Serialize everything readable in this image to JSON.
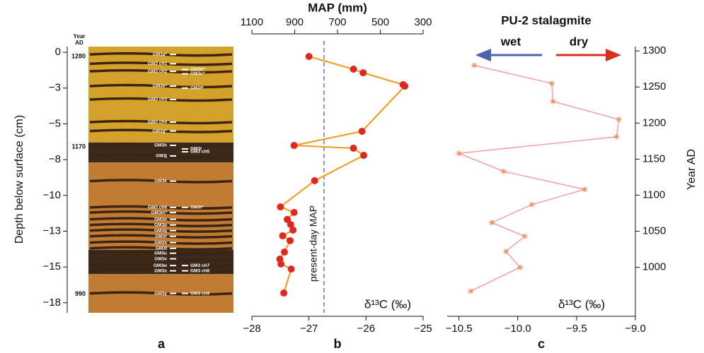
{
  "chart_data": [
    {
      "type": "column",
      "panel": "a",
      "ylabel": "Depth below surface (cm)",
      "ylim": [
        0.4,
        -18.2
      ],
      "yticks": [
        0,
        {
          "value": -2.5,
          "label": "−3"
        },
        {
          "value": -5,
          "label": "−5"
        },
        {
          "value": -7.5,
          "label": "−8"
        },
        {
          "value": -10,
          "label": "−10"
        },
        {
          "value": -12.5,
          "label": "−13"
        },
        {
          "value": -15,
          "label": "−15"
        },
        {
          "value": -17.5,
          "label": "−18"
        }
      ],
      "year_header": [
        "Year",
        "AD"
      ],
      "years": [
        1280,
        1170,
        990
      ],
      "year_depths": [
        -0.3,
        -6.6,
        -16.9
      ],
      "units": [
        {
          "top": 0.4,
          "bottom": -6.3,
          "color": "#d4a22a"
        },
        {
          "top": -6.3,
          "bottom": -7.7,
          "color": "#3b2a1c"
        },
        {
          "top": -7.7,
          "bottom": -13.8,
          "color": "#c27b32"
        },
        {
          "top": -13.8,
          "bottom": -15.5,
          "color": "#3b2a1c"
        },
        {
          "top": -15.5,
          "bottom": -18.2,
          "color": "#c27b32"
        }
      ],
      "samples": {
        "names": [
          "GM3a*",
          "GM3 ch1",
          "GM3 ch2",
          "GM3e*",
          "GM3 ch3",
          "GM3 ch4",
          "GM3g*",
          "GM3h",
          "GM3j",
          "GM3k",
          "GM3 ch6",
          "GM3m*",
          "GM3o",
          "GM3p",
          "GM3q",
          "GM3r",
          "GM3s",
          "GM3t",
          "GM3u",
          "GM3v",
          "GM3w",
          "GM3x",
          "GM3y"
        ],
        "depths": [
          -0.15,
          -0.8,
          -1.33,
          -2.36,
          -3.3,
          -4.88,
          -5.5,
          -6.5,
          -7.24,
          -9.0,
          -10.84,
          -11.2,
          -11.67,
          -12.07,
          -12.46,
          -12.86,
          -13.3,
          -13.7,
          -14.04,
          -14.43,
          -14.9,
          -15.27,
          -16.85
        ]
      },
      "channels": {
        "names": [
          "GM3b*",
          "GM3c*",
          "GM3f*",
          "GM3i",
          "GM3 ch5",
          "GM3l*",
          "GM3 ch7",
          "GM3 ch8",
          "GM3 ch9"
        ],
        "depths": [
          -1.2,
          -1.5,
          -2.5,
          -6.75,
          -6.95,
          -10.84,
          -14.9,
          -15.27,
          -16.85
        ]
      }
    },
    {
      "type": "line",
      "panel": "b",
      "xlabel": "δ¹³C (‰)",
      "x2label": "MAP (mm)",
      "xlim": [
        -28,
        -25
      ],
      "xticks": [
        {
          "value": -28,
          "label": "−28"
        },
        {
          "value": -27,
          "label": "−27"
        },
        {
          "value": -26,
          "label": "−26"
        },
        {
          "value": -25,
          "label": "−25"
        }
      ],
      "x2lim": [
        1100,
        300
      ],
      "x2ticks": [
        1100,
        900,
        700,
        500,
        300
      ],
      "ylim": [
        0.4,
        -18.2
      ],
      "reference": {
        "value": 763,
        "label": "present-day MAP",
        "color": "#4a62b0"
      },
      "line_color": "#f0a028",
      "marker_color": "#e0281e",
      "x": [
        -27.0,
        -26.22,
        -26.05,
        -25.35,
        -25.32,
        -26.07,
        -27.26,
        -26.22,
        -26.04,
        -26.9,
        -27.5,
        -27.26,
        -27.38,
        -27.32,
        -27.28,
        -27.46,
        -27.33,
        -27.43,
        -27.51,
        -27.49,
        -27.31,
        -27.44
      ],
      "values": [
        -0.29,
        -1.18,
        -1.43,
        -2.26,
        -2.36,
        -5.52,
        -6.51,
        -6.7,
        -7.2,
        -8.97,
        -10.8,
        -11.19,
        -11.68,
        -12.03,
        -12.42,
        -12.82,
        -13.16,
        -13.96,
        -14.45,
        -14.79,
        -15.14,
        -16.82
      ]
    },
    {
      "type": "line",
      "panel": "c",
      "title": "PU-2 stalagmite",
      "arrow_labels": [
        "wet",
        "dry"
      ],
      "arrow_colors": [
        "#4a62b0",
        "#d83020"
      ],
      "xlabel": "δ¹³C (‰)",
      "ylabel": "Year AD",
      "xlim": [
        -10.6,
        -9.0
      ],
      "xticks": [
        {
          "value": -10.5,
          "label": "−10.5"
        },
        {
          "value": -10.0,
          "label": "−10.0"
        },
        {
          "value": -9.5,
          "label": "−9.5"
        },
        {
          "value": -9.0,
          "label": "−9.0"
        }
      ],
      "ylim": [
        937,
        1306
      ],
      "yticks": [
        1000,
        1050,
        1100,
        1150,
        1200,
        1250,
        1300
      ],
      "line_color": "#f4a6a6",
      "marker_color": "#f08a50",
      "x": [
        -10.37,
        -9.71,
        -9.7,
        -9.14,
        -9.16,
        -10.5,
        -10.12,
        -9.43,
        -9.88,
        -10.22,
        -9.94,
        -10.1,
        -9.98,
        -10.4
      ],
      "values": [
        1280,
        1255,
        1230,
        1205,
        1181,
        1158,
        1133,
        1108,
        1087,
        1062,
        1043,
        1022,
        1000,
        967
      ]
    }
  ]
}
